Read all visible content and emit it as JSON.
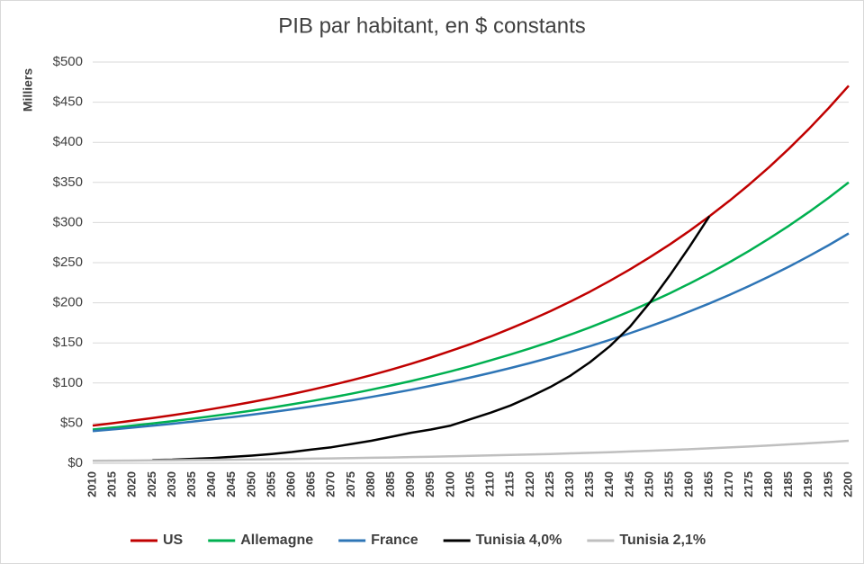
{
  "chart_data": {
    "type": "line",
    "title": "PIB par habitant, en $ constants",
    "y_label": "Milliers",
    "categories": [
      "2010",
      "2015",
      "2020",
      "2025",
      "2030",
      "2035",
      "2040",
      "2045",
      "2050",
      "2055",
      "2060",
      "2065",
      "2070",
      "2075",
      "2080",
      "2085",
      "2090",
      "2095",
      "2100",
      "2105",
      "2110",
      "2115",
      "2120",
      "2125",
      "2130",
      "2135",
      "2140",
      "2145",
      "2150",
      "2155",
      "2160",
      "2165",
      "2170",
      "2175",
      "2180",
      "2185",
      "2190",
      "2195",
      "2200"
    ],
    "series": [
      {
        "name": "US",
        "color": "#c00000",
        "values": [
          47,
          49.9,
          53.1,
          56.4,
          59.9,
          63.6,
          67.6,
          71.9,
          76.3,
          81.1,
          86.2,
          91.6,
          97.3,
          103.4,
          109.8,
          116.7,
          124.0,
          131.7,
          140.0,
          148.7,
          158.0,
          167.9,
          178.4,
          189.5,
          201.4,
          213.9,
          227.3,
          241.5,
          256.6,
          272.6,
          289.7,
          307.8,
          327.0,
          347.4,
          369.1,
          392.2,
          416.7,
          442.8,
          470.5
        ]
      },
      {
        "name": "Allemagne",
        "color": "#00b050",
        "values": [
          42,
          44.4,
          47.0,
          49.7,
          52.5,
          55.5,
          58.7,
          62.1,
          65.6,
          69.4,
          73.4,
          77.6,
          82.0,
          86.7,
          91.7,
          97.0,
          102.5,
          108.4,
          114.6,
          121.2,
          128.2,
          135.5,
          143.3,
          151.5,
          160.2,
          169.4,
          179.2,
          189.4,
          200.3,
          211.8,
          224.0,
          236.8,
          250.4,
          264.8,
          280.0,
          296.1,
          313.1,
          331.0,
          350.0
        ]
      },
      {
        "name": "France",
        "color": "#2e75b6",
        "values": [
          40,
          42.1,
          44.4,
          46.7,
          49.2,
          51.8,
          54.6,
          57.5,
          60.5,
          63.8,
          67.1,
          70.7,
          74.5,
          78.4,
          82.6,
          87.0,
          91.6,
          96.5,
          101.6,
          107.0,
          112.7,
          118.7,
          125.0,
          131.7,
          138.7,
          146.0,
          153.8,
          162.0,
          170.6,
          179.6,
          189.2,
          199.2,
          209.8,
          221.0,
          232.7,
          245.1,
          258.2,
          271.9,
          286.4
        ]
      },
      {
        "name": "Tunisia 4,0%",
        "color": "#000000",
        "values": [
          null,
          null,
          null,
          4,
          4.5,
          5.5,
          6.5,
          8,
          9.5,
          11.5,
          14,
          17,
          20,
          24,
          28,
          33,
          38,
          42,
          47,
          55,
          63,
          72,
          83,
          95,
          109,
          126,
          146,
          170,
          200,
          234,
          270,
          308,
          null,
          null,
          null,
          null,
          null,
          null,
          null
        ]
      },
      {
        "name": "Tunisia 2,1%",
        "color": "#bfbfbf",
        "values": [
          3,
          3.2,
          3.4,
          3.6,
          3.8,
          4.0,
          4.3,
          4.5,
          4.8,
          5.1,
          5.4,
          5.7,
          6.1,
          6.4,
          6.8,
          7.2,
          7.7,
          8.1,
          8.6,
          9.2,
          9.7,
          10.3,
          10.9,
          11.6,
          12.3,
          13.0,
          13.8,
          14.7,
          15.6,
          16.5,
          17.5,
          18.6,
          19.7,
          20.9,
          22.2,
          23.5,
          24.9,
          26.4,
          28.0
        ]
      }
    ],
    "ylim": [
      0,
      500
    ],
    "yticks": [
      {
        "value": 0,
        "label": "$0"
      },
      {
        "value": 50,
        "label": "$50"
      },
      {
        "value": 100,
        "label": "$100"
      },
      {
        "value": 150,
        "label": "$150"
      },
      {
        "value": 200,
        "label": "$200"
      },
      {
        "value": 250,
        "label": "$250"
      },
      {
        "value": 300,
        "label": "$300"
      },
      {
        "value": 350,
        "label": "$350"
      },
      {
        "value": 400,
        "label": "$400"
      },
      {
        "value": 450,
        "label": "$450"
      },
      {
        "value": 500,
        "label": "$500"
      }
    ],
    "grid": true,
    "legend": "bottom"
  }
}
